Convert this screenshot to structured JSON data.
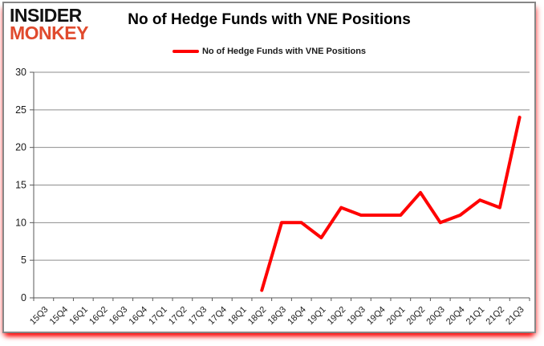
{
  "brand": {
    "line1": "INSIDER",
    "line2": "MONKEY"
  },
  "header": {
    "title": "No of Hedge Funds with VNE Positions"
  },
  "legend": {
    "label": "No of Hedge Funds with VNE Positions"
  },
  "colors": {
    "series_red": "#ff0000",
    "brand_red": "#e04a2d",
    "frame_border": "#878787",
    "gridline": "#8e8e8e",
    "axis": "#595959",
    "label_text": "#1a1a1a"
  },
  "chart_data": {
    "type": "line",
    "title": "No of Hedge Funds with VNE Positions",
    "categories": [
      "15Q3",
      "15Q4",
      "16Q1",
      "16Q2",
      "16Q3",
      "16Q4",
      "17Q1",
      "17Q2",
      "17Q3",
      "17Q4",
      "18Q1",
      "18Q2",
      "18Q3",
      "18Q4",
      "19Q1",
      "19Q2",
      "19Q3",
      "19Q4",
      "20Q1",
      "20Q2",
      "20Q3",
      "20Q4",
      "21Q1",
      "21Q2",
      "21Q3"
    ],
    "series": [
      {
        "name": "No of Hedge Funds with VNE Positions",
        "color": "#ff0000",
        "values": [
          null,
          null,
          null,
          null,
          null,
          null,
          null,
          null,
          null,
          null,
          null,
          1,
          10,
          10,
          8,
          12,
          11,
          11,
          11,
          14,
          10,
          11,
          13,
          12,
          24
        ]
      }
    ],
    "xlabel": "",
    "ylabel": "",
    "ylim": [
      0,
      30
    ],
    "yticks": [
      0,
      5,
      10,
      15,
      20,
      25,
      30
    ],
    "grid": true,
    "legend_position": "top"
  }
}
